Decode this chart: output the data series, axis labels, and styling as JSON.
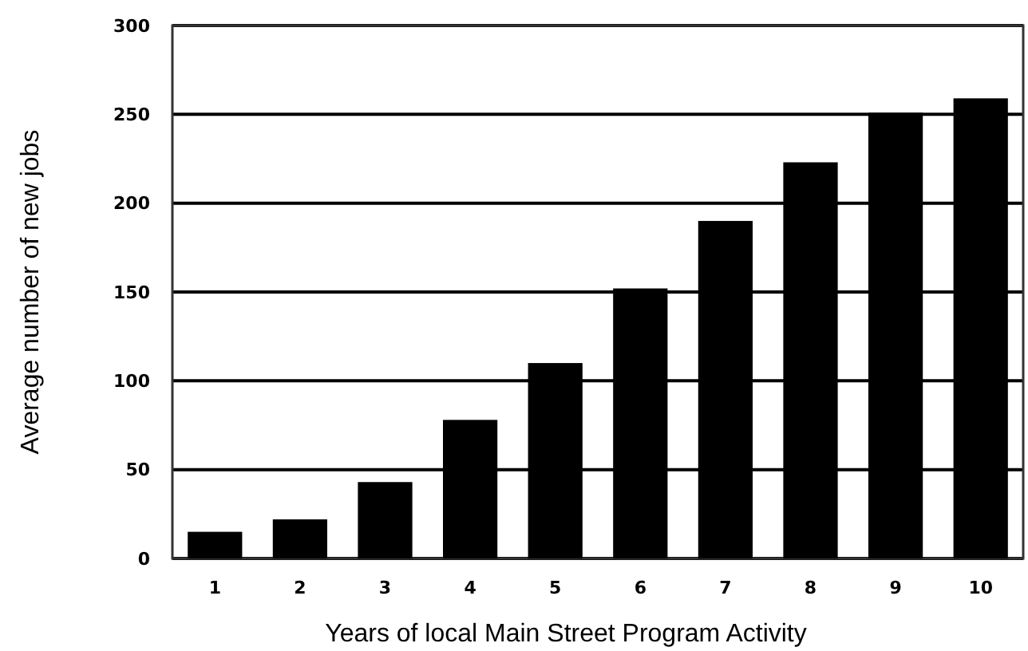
{
  "chart_data": {
    "type": "bar",
    "xlabel": "Years of local Main Street Program Activity",
    "ylabel": "Average number of new jobs",
    "categories": [
      "1",
      "2",
      "3",
      "4",
      "5",
      "6",
      "7",
      "8",
      "9",
      "10"
    ],
    "values": [
      15,
      22,
      43,
      78,
      110,
      152,
      190,
      223,
      251,
      259
    ],
    "color": "#000000",
    "ylim": [
      0,
      300
    ],
    "yticks": [
      0,
      50,
      100,
      150,
      200,
      250,
      300
    ],
    "grid": "y"
  }
}
